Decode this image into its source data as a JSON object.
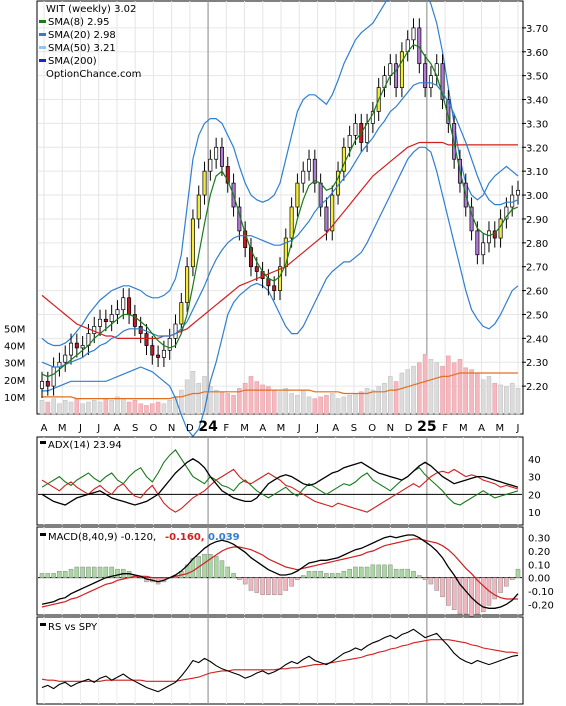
{
  "chart_data": {
    "type": "candlestick",
    "price_panel": {
      "legend": [
        {
          "label": "WIT (weekly) 3.02",
          "color": "#000000"
        },
        {
          "label": "SMA(8) 2.95",
          "color": "#1a7a1a"
        },
        {
          "label": "SMA(20) 2.98",
          "color": "#2f7fd1"
        },
        {
          "label": "SMA(50) 3.21",
          "color": "#8fc6f0"
        },
        {
          "label": "SMA(200)",
          "color": "#2020d0"
        }
      ],
      "watermark": "OptionChance.com",
      "y_ticks": [
        "3.70",
        "3.60",
        "3.50",
        "3.40",
        "3.30",
        "3.20",
        "3.10",
        "3.00",
        "2.90",
        "2.80",
        "2.70",
        "2.60",
        "2.50",
        "2.40",
        "2.30",
        "2.20"
      ],
      "ylim": [
        2.1,
        3.8
      ],
      "closes": [
        2.22,
        2.2,
        2.28,
        2.3,
        2.33,
        2.38,
        2.36,
        2.37,
        2.42,
        2.45,
        2.48,
        2.47,
        2.5,
        2.52,
        2.57,
        2.5,
        2.45,
        2.42,
        2.37,
        2.33,
        2.32,
        2.35,
        2.4,
        2.46,
        2.55,
        2.7,
        2.9,
        3.0,
        3.1,
        3.15,
        3.2,
        3.12,
        3.05,
        2.95,
        2.85,
        2.78,
        2.7,
        2.68,
        2.65,
        2.62,
        2.6,
        2.7,
        2.82,
        2.95,
        3.05,
        3.1,
        3.15,
        3.05,
        2.95,
        2.85,
        3.0,
        3.1,
        3.2,
        3.25,
        3.3,
        3.22,
        3.3,
        3.35,
        3.45,
        3.5,
        3.55,
        3.45,
        3.6,
        3.65,
        3.7,
        3.55,
        3.45,
        3.5,
        3.55,
        3.4,
        3.3,
        3.15,
        3.05,
        2.95,
        2.85,
        2.75,
        2.8,
        2.85,
        2.82,
        2.9,
        2.95,
        3.0,
        3.02
      ],
      "sma8": [
        2.25,
        2.24,
        2.25,
        2.27,
        2.29,
        2.31,
        2.33,
        2.35,
        2.37,
        2.4,
        2.42,
        2.44,
        2.46,
        2.48,
        2.5,
        2.5,
        2.49,
        2.47,
        2.45,
        2.42,
        2.39,
        2.37,
        2.36,
        2.37,
        2.42,
        2.5,
        2.62,
        2.75,
        2.88,
        3.0,
        3.08,
        3.1,
        3.06,
        3.0,
        2.92,
        2.84,
        2.77,
        2.72,
        2.68,
        2.65,
        2.64,
        2.66,
        2.71,
        2.8,
        2.9,
        2.98,
        3.04,
        3.06,
        3.05,
        3.02,
        3.03,
        3.07,
        3.13,
        3.18,
        3.23,
        3.26,
        3.3,
        3.34,
        3.4,
        3.45,
        3.5,
        3.52,
        3.56,
        3.6,
        3.63,
        3.62,
        3.58,
        3.55,
        3.5,
        3.42,
        3.33,
        3.22,
        3.1,
        3.0,
        2.92,
        2.86,
        2.84,
        2.83,
        2.84,
        2.87,
        2.91,
        2.94,
        2.95
      ],
      "sma20": [
        2.3,
        2.29,
        2.28,
        2.28,
        2.29,
        2.3,
        2.31,
        2.32,
        2.34,
        2.35,
        2.37,
        2.38,
        2.4,
        2.41,
        2.43,
        2.44,
        2.44,
        2.44,
        2.43,
        2.42,
        2.41,
        2.41,
        2.41,
        2.42,
        2.44,
        2.47,
        2.52,
        2.57,
        2.62,
        2.68,
        2.73,
        2.77,
        2.8,
        2.82,
        2.83,
        2.83,
        2.83,
        2.82,
        2.81,
        2.8,
        2.79,
        2.79,
        2.8,
        2.81,
        2.83,
        2.86,
        2.89,
        2.93,
        2.96,
        2.98,
        3.01,
        3.04,
        3.07,
        3.1,
        3.14,
        3.18,
        3.21,
        3.24,
        3.28,
        3.31,
        3.35,
        3.37,
        3.4,
        3.43,
        3.46,
        3.47,
        3.47,
        3.47,
        3.46,
        3.43,
        3.39,
        3.34,
        3.28,
        3.22,
        3.15,
        3.08,
        3.02,
        2.98,
        2.96,
        2.96,
        2.97,
        2.97,
        2.98
      ],
      "sma50": [
        2.58,
        2.56,
        2.54,
        2.52,
        2.5,
        2.48,
        2.46,
        2.45,
        2.44,
        2.43,
        2.42,
        2.41,
        2.41,
        2.4,
        2.4,
        2.4,
        2.4,
        2.4,
        2.4,
        2.4,
        2.4,
        2.41,
        2.41,
        2.42,
        2.43,
        2.44,
        2.46,
        2.48,
        2.5,
        2.52,
        2.54,
        2.56,
        2.58,
        2.6,
        2.62,
        2.63,
        2.64,
        2.65,
        2.66,
        2.67,
        2.68,
        2.69,
        2.7,
        2.72,
        2.74,
        2.76,
        2.78,
        2.8,
        2.82,
        2.84,
        2.87,
        2.9,
        2.93,
        2.96,
        2.99,
        3.02,
        3.05,
        3.08,
        3.1,
        3.12,
        3.14,
        3.16,
        3.18,
        3.2,
        3.21,
        3.22,
        3.22,
        3.22,
        3.22,
        3.22,
        3.21,
        3.21,
        3.21,
        3.21,
        3.21,
        3.21,
        3.21,
        3.21,
        3.21,
        3.21,
        3.21,
        3.21,
        3.21
      ],
      "bb_upper": [
        2.4,
        2.38,
        2.37,
        2.37,
        2.38,
        2.4,
        2.43,
        2.46,
        2.5,
        2.53,
        2.56,
        2.58,
        2.6,
        2.61,
        2.62,
        2.62,
        2.61,
        2.6,
        2.58,
        2.57,
        2.57,
        2.58,
        2.6,
        2.65,
        2.75,
        2.95,
        3.15,
        3.25,
        3.3,
        3.32,
        3.32,
        3.3,
        3.25,
        3.2,
        3.12,
        3.05,
        3.0,
        2.98,
        2.97,
        2.98,
        3.0,
        3.05,
        3.15,
        3.25,
        3.35,
        3.4,
        3.42,
        3.42,
        3.4,
        3.38,
        3.42,
        3.48,
        3.55,
        3.6,
        3.65,
        3.68,
        3.7,
        3.72,
        3.76,
        3.8,
        3.84,
        3.86,
        3.88,
        3.9,
        3.92,
        3.9,
        3.85,
        3.8,
        3.72,
        3.6,
        3.45,
        3.3,
        3.15,
        3.05,
        3.0,
        2.98,
        3.0,
        3.05,
        3.08,
        3.1,
        3.12,
        3.1,
        3.08
      ],
      "bb_lower": [
        2.18,
        2.18,
        2.19,
        2.2,
        2.21,
        2.22,
        2.22,
        2.22,
        2.22,
        2.22,
        2.22,
        2.22,
        2.23,
        2.24,
        2.25,
        2.26,
        2.27,
        2.28,
        2.27,
        2.26,
        2.24,
        2.22,
        2.2,
        2.15,
        2.08,
        2.02,
        1.99,
        2.02,
        2.1,
        2.22,
        2.3,
        2.4,
        2.5,
        2.55,
        2.58,
        2.6,
        2.62,
        2.63,
        2.62,
        2.6,
        2.55,
        2.5,
        2.45,
        2.42,
        2.42,
        2.45,
        2.5,
        2.55,
        2.6,
        2.65,
        2.68,
        2.7,
        2.72,
        2.72,
        2.74,
        2.76,
        2.8,
        2.85,
        2.9,
        2.95,
        3.0,
        3.05,
        3.1,
        3.15,
        3.18,
        3.2,
        3.2,
        3.18,
        3.1,
        3.0,
        2.9,
        2.8,
        2.7,
        2.6,
        2.52,
        2.48,
        2.45,
        2.44,
        2.46,
        2.5,
        2.55,
        2.6,
        2.62
      ],
      "volume_ticks": [
        "50M",
        "40M",
        "30M",
        "20M",
        "10M"
      ],
      "volume_max": 55,
      "volumes": [
        8,
        7,
        9,
        6,
        8,
        7,
        9,
        6,
        7,
        8,
        7,
        9,
        8,
        10,
        9,
        7,
        8,
        6,
        5,
        6,
        7,
        6,
        8,
        10,
        14,
        20,
        25,
        18,
        22,
        16,
        14,
        13,
        12,
        11,
        15,
        18,
        22,
        19,
        17,
        16,
        14,
        13,
        15,
        12,
        11,
        14,
        10,
        9,
        10,
        11,
        12,
        9,
        10,
        11,
        12,
        13,
        15,
        14,
        16,
        18,
        22,
        19,
        24,
        26,
        28,
        30,
        35,
        32,
        30,
        28,
        34,
        30,
        32,
        27,
        26,
        24,
        20,
        22,
        18,
        17,
        16,
        18,
        15
      ],
      "volume_avg": [
        10,
        10,
        10,
        10,
        10,
        10,
        9,
        9,
        9,
        9,
        9,
        9,
        9,
        9,
        9,
        9,
        9,
        9,
        9,
        9,
        9,
        9,
        9,
        10,
        10,
        11,
        12,
        12,
        13,
        13,
        13,
        13,
        13,
        13,
        13,
        14,
        14,
        14,
        14,
        14,
        14,
        14,
        14,
        14,
        14,
        14,
        14,
        13,
        13,
        13,
        13,
        13,
        12,
        12,
        12,
        12,
        12,
        13,
        13,
        13,
        14,
        14,
        15,
        16,
        17,
        18,
        19,
        20,
        21,
        22,
        22,
        23,
        24,
        24,
        24,
        24,
        24,
        24,
        24,
        24,
        24,
        24,
        24
      ]
    },
    "x_axis": {
      "labels": [
        "A",
        "M",
        "J",
        "J",
        "A",
        "S",
        "O",
        "N",
        "D",
        "24",
        "F",
        "M",
        "A",
        "M",
        "J",
        "J",
        "A",
        "S",
        "O",
        "N",
        "D",
        "25",
        "F",
        "M",
        "A",
        "M",
        "J"
      ],
      "bold_labels": [
        "24",
        "25"
      ]
    },
    "adx_panel": {
      "legend": "ADX(14) 23.94",
      "y_ticks": [
        "40",
        "30",
        "20",
        "10"
      ],
      "ylim": [
        5,
        50
      ],
      "adx": [
        20,
        18,
        16,
        15,
        14,
        16,
        18,
        19,
        20,
        21,
        22,
        20,
        18,
        17,
        16,
        15,
        14,
        15,
        16,
        18,
        20,
        24,
        28,
        32,
        35,
        38,
        40,
        38,
        35,
        30,
        26,
        22,
        20,
        18,
        17,
        16,
        16,
        18,
        22,
        26,
        28,
        30,
        31,
        30,
        28,
        26,
        25,
        26,
        28,
        30,
        32,
        33,
        35,
        36,
        37,
        38,
        36,
        34,
        32,
        31,
        30,
        29,
        28,
        30,
        33,
        36,
        38,
        36,
        33,
        30,
        28,
        26,
        27,
        28,
        29,
        30,
        30,
        29,
        28,
        27,
        26,
        25,
        24
      ],
      "plus_di": [
        24,
        26,
        28,
        30,
        27,
        25,
        28,
        30,
        32,
        29,
        27,
        30,
        32,
        28,
        26,
        30,
        33,
        35,
        30,
        27,
        32,
        38,
        42,
        45,
        40,
        35,
        30,
        28,
        26,
        30,
        28,
        25,
        24,
        22,
        26,
        28,
        25,
        22,
        20,
        18,
        20,
        22,
        24,
        21,
        19,
        23,
        26,
        24,
        22,
        20,
        22,
        24,
        26,
        25,
        27,
        30,
        32,
        28,
        26,
        24,
        22,
        25,
        28,
        30,
        33,
        35,
        31,
        28,
        25,
        22,
        18,
        15,
        14,
        16,
        18,
        20,
        22,
        20,
        18,
        19,
        20,
        21,
        22
      ],
      "minus_di": [
        28,
        26,
        24,
        22,
        25,
        27,
        24,
        22,
        20,
        23,
        25,
        22,
        20,
        24,
        26,
        22,
        19,
        18,
        22,
        25,
        20,
        15,
        12,
        10,
        12,
        15,
        18,
        20,
        22,
        25,
        28,
        30,
        32,
        34,
        30,
        27,
        26,
        28,
        30,
        32,
        30,
        28,
        25,
        24,
        22,
        20,
        18,
        16,
        15,
        14,
        13,
        15,
        14,
        13,
        12,
        11,
        10,
        12,
        14,
        16,
        18,
        20,
        22,
        24,
        26,
        24,
        27,
        30,
        32,
        33,
        32,
        34,
        32,
        30,
        31,
        30,
        28,
        27,
        26,
        24,
        25,
        24,
        23
      ],
      "reference_line": 20
    },
    "macd_panel": {
      "legend": "MACD(8,40,9) -0.120,",
      "legend_signal": "-0.160,",
      "legend_hist": "0.039",
      "y_ticks": [
        "0.30",
        "0.20",
        "0.10",
        "0.00",
        "-0.10",
        "-0.20"
      ],
      "ylim": [
        -0.25,
        0.35
      ],
      "macd": [
        -0.2,
        -0.19,
        -0.18,
        -0.16,
        -0.15,
        -0.12,
        -0.1,
        -0.08,
        -0.06,
        -0.04,
        -0.02,
        0.0,
        0.01,
        0.02,
        0.03,
        0.03,
        0.02,
        0.01,
        -0.01,
        -0.02,
        -0.03,
        -0.02,
        0.0,
        0.02,
        0.05,
        0.09,
        0.14,
        0.18,
        0.22,
        0.25,
        0.27,
        0.28,
        0.27,
        0.25,
        0.22,
        0.19,
        0.15,
        0.12,
        0.09,
        0.06,
        0.04,
        0.02,
        0.02,
        0.03,
        0.05,
        0.08,
        0.11,
        0.12,
        0.13,
        0.13,
        0.14,
        0.15,
        0.17,
        0.19,
        0.21,
        0.22,
        0.24,
        0.26,
        0.28,
        0.3,
        0.31,
        0.3,
        0.31,
        0.32,
        0.32,
        0.3,
        0.27,
        0.24,
        0.2,
        0.15,
        0.08,
        0.02,
        -0.05,
        -0.1,
        -0.15,
        -0.19,
        -0.22,
        -0.23,
        -0.23,
        -0.22,
        -0.2,
        -0.17,
        -0.12
      ],
      "signal": [
        -0.22,
        -0.21,
        -0.2,
        -0.19,
        -0.18,
        -0.16,
        -0.15,
        -0.13,
        -0.11,
        -0.09,
        -0.07,
        -0.05,
        -0.04,
        -0.02,
        -0.01,
        0.0,
        0.01,
        0.01,
        0.01,
        0.0,
        0.0,
        0.0,
        0.0,
        0.01,
        0.02,
        0.03,
        0.05,
        0.08,
        0.11,
        0.14,
        0.17,
        0.2,
        0.22,
        0.23,
        0.23,
        0.22,
        0.21,
        0.19,
        0.17,
        0.14,
        0.12,
        0.1,
        0.08,
        0.07,
        0.06,
        0.07,
        0.08,
        0.09,
        0.1,
        0.11,
        0.12,
        0.13,
        0.14,
        0.15,
        0.16,
        0.17,
        0.19,
        0.2,
        0.22,
        0.24,
        0.25,
        0.26,
        0.27,
        0.28,
        0.29,
        0.29,
        0.28,
        0.27,
        0.26,
        0.24,
        0.21,
        0.17,
        0.12,
        0.07,
        0.03,
        -0.02,
        -0.06,
        -0.1,
        -0.13,
        -0.15,
        -0.16,
        -0.16,
        -0.16
      ]
    },
    "rs_panel": {
      "legend": "RS vs SPY",
      "rs": [
        22,
        24,
        21,
        25,
        27,
        23,
        26,
        28,
        30,
        27,
        31,
        33,
        29,
        32,
        35,
        31,
        28,
        25,
        22,
        20,
        18,
        21,
        24,
        27,
        33,
        40,
        48,
        46,
        50,
        47,
        43,
        40,
        38,
        36,
        34,
        31,
        33,
        36,
        38,
        35,
        37,
        40,
        44,
        47,
        45,
        49,
        52,
        48,
        46,
        44,
        47,
        51,
        55,
        57,
        60,
        58,
        62,
        65,
        67,
        70,
        72,
        69,
        73,
        75,
        78,
        74,
        70,
        72,
        74,
        68,
        62,
        55,
        50,
        47,
        45,
        48,
        46,
        44,
        46,
        48,
        50,
        52,
        53
      ],
      "rs_ma": [
        30,
        29,
        29,
        28,
        28,
        28,
        28,
        28,
        28,
        28,
        28,
        29,
        29,
        29,
        29,
        29,
        29,
        29,
        28,
        28,
        28,
        28,
        28,
        28,
        29,
        30,
        31,
        32,
        34,
        36,
        37,
        38,
        38,
        39,
        39,
        39,
        39,
        39,
        39,
        39,
        39,
        40,
        40,
        41,
        41,
        42,
        43,
        44,
        44,
        45,
        46,
        47,
        48,
        49,
        50,
        51,
        53,
        54,
        56,
        57,
        59,
        60,
        62,
        63,
        65,
        66,
        67,
        68,
        68,
        68,
        68,
        67,
        66,
        65,
        63,
        62,
        60,
        59,
        58,
        57,
        56,
        56,
        55
      ]
    }
  }
}
